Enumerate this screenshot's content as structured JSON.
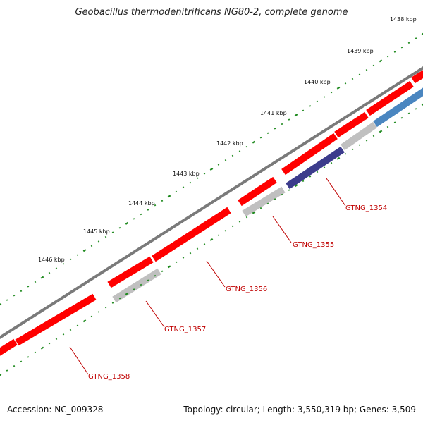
{
  "title": "Geobacillus thermodenitrificans NG80-2, complete genome",
  "footer": {
    "accession": "Accession: NC_009328",
    "summary": "Topology: circular; Length: 3,550,319 bp; Genes: 3,509"
  },
  "colors": {
    "backbone": "#7a7a7a",
    "forward_cds": "#ff0000",
    "reverse_cds": "#c0c0c0",
    "reverse_cds_dark": "#3c3c8c",
    "reverse_cds_blue": "#4a86c0",
    "ticks": "#1f8a1f",
    "gene_label": "#c00000"
  },
  "ruler": [
    {
      "label": "1438 kbp"
    },
    {
      "label": "1439 kbp"
    },
    {
      "label": "1440 kbp"
    },
    {
      "label": "1441 kbp"
    },
    {
      "label": "1442 kbp"
    },
    {
      "label": "1443 kbp"
    },
    {
      "label": "1444 kbp"
    },
    {
      "label": "1445 kbp"
    },
    {
      "label": "1446 kbp"
    }
  ],
  "gene_labels": [
    {
      "label": "GTNG_1354"
    },
    {
      "label": "GTNG_1355"
    },
    {
      "label": "GTNG_1356"
    },
    {
      "label": "GTNG_1357"
    },
    {
      "label": "GTNG_1358"
    }
  ]
}
